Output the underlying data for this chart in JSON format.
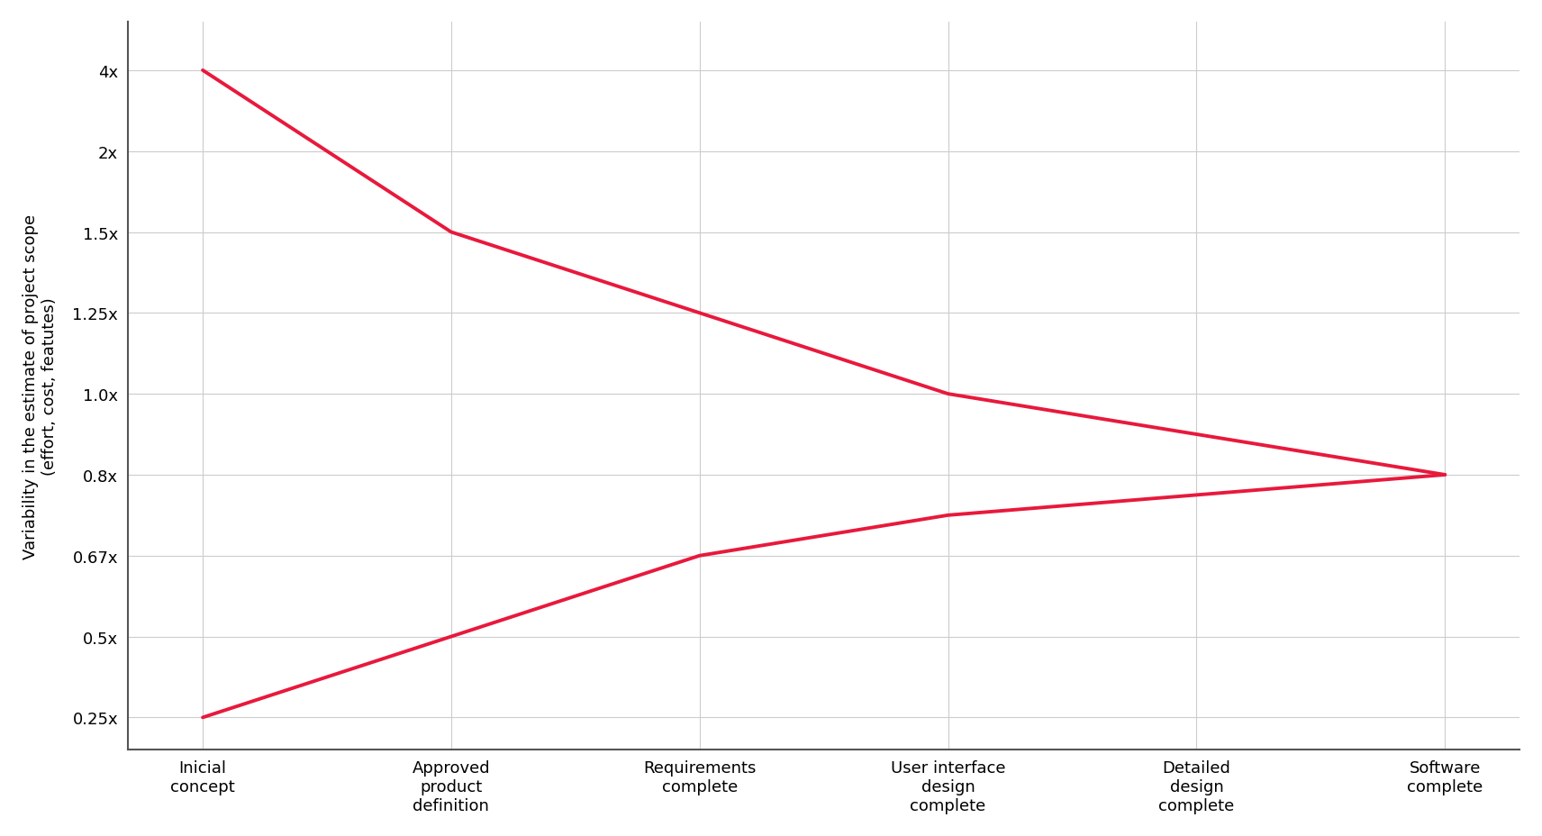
{
  "x_labels": [
    "Inicial\nconcept",
    "Approved\nproduct\ndefinition",
    "Requirements\ncomplete",
    "User interface\ndesign\ncomplete",
    "Detailed\ndesign\ncomplete",
    "Software\ncomplete"
  ],
  "upper_line_idx": [
    8,
    6,
    5,
    4,
    3.5,
    3
  ],
  "lower_line_idx": [
    0,
    1,
    2,
    2.5,
    2.75,
    3
  ],
  "ytick_positions": [
    0,
    1,
    2,
    3,
    4,
    5,
    6,
    7,
    8
  ],
  "ytick_labels": [
    "0.25x",
    "0.5x",
    "0.67x",
    "0.8x",
    "1.0x",
    "1.25x",
    "1.5x",
    "2x",
    "4x"
  ],
  "line_color": "#e8193c",
  "line_width": 2.8,
  "background_color": "#ffffff",
  "grid_color": "#cccccc",
  "ylabel_line1": "Variability in the estimate of project scope",
  "ylabel_line2": "(effort, cost, featutes)",
  "ylim_min": -0.4,
  "ylim_max": 8.6
}
